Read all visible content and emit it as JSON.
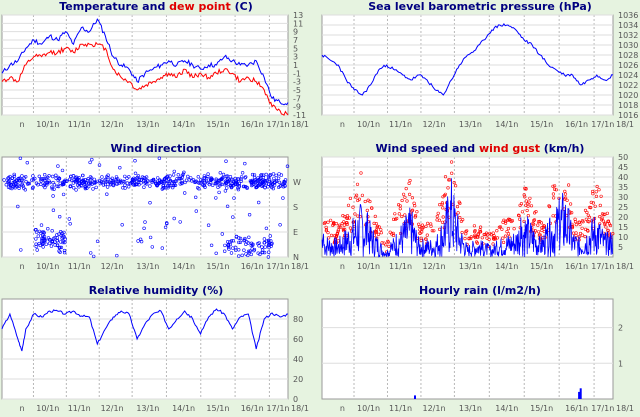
{
  "x_ticks": [
    "n",
    "10/1n",
    "11/1n",
    "12/1n",
    "13/1n",
    "14/1n",
    "15/1n",
    "16/1n",
    "17/1n",
    "18/1"
  ],
  "colors": {
    "blue": "#0000ff",
    "red": "#ff0000",
    "title": "#000080",
    "background": "#e6f3e0"
  },
  "chart_data": [
    {
      "type": "line",
      "title_part1": "Temperature and ",
      "title_part2": "dew point",
      "title_part3": " (C)",
      "ylim": [
        -11,
        13
      ],
      "yticks": [
        13,
        11,
        9,
        7,
        5,
        3,
        1,
        -1,
        -3,
        -5,
        -7,
        -9,
        -11
      ],
      "x_range": [
        0,
        36
      ],
      "series": [
        {
          "color": "#0000ff",
          "values": [
            [
              0,
              -1
            ],
            [
              1,
              1
            ],
            [
              2,
              2
            ],
            [
              3,
              5
            ],
            [
              4,
              7
            ],
            [
              5,
              6
            ],
            [
              6,
              8
            ],
            [
              7,
              7
            ],
            [
              8,
              9
            ],
            [
              9,
              6
            ],
            [
              10,
              10
            ],
            [
              11,
              9
            ],
            [
              12,
              12
            ],
            [
              13,
              8
            ],
            [
              14,
              3
            ],
            [
              15,
              1
            ],
            [
              16,
              0
            ],
            [
              17,
              -3
            ],
            [
              18,
              -1
            ],
            [
              19,
              0
            ],
            [
              20,
              1
            ],
            [
              21,
              2
            ],
            [
              22,
              1
            ],
            [
              23,
              2
            ],
            [
              24,
              1
            ],
            [
              25,
              0
            ],
            [
              26,
              1
            ],
            [
              27,
              1
            ],
            [
              28,
              3
            ],
            [
              29,
              2
            ],
            [
              30,
              1
            ],
            [
              31,
              1
            ],
            [
              32,
              2
            ],
            [
              33,
              -2
            ],
            [
              34,
              -7
            ],
            [
              35,
              -8
            ],
            [
              36,
              -8
            ]
          ]
        },
        {
          "color": "#ff0000",
          "values": [
            [
              0,
              -3
            ],
            [
              1,
              -2
            ],
            [
              2,
              -3
            ],
            [
              3,
              1
            ],
            [
              4,
              3
            ],
            [
              5,
              3
            ],
            [
              6,
              4
            ],
            [
              7,
              4
            ],
            [
              8,
              5
            ],
            [
              9,
              4
            ],
            [
              10,
              6
            ],
            [
              11,
              6
            ],
            [
              12,
              6
            ],
            [
              13,
              5
            ],
            [
              14,
              0
            ],
            [
              15,
              -2
            ],
            [
              16,
              -3
            ],
            [
              17,
              -5
            ],
            [
              18,
              -4
            ],
            [
              19,
              -3
            ],
            [
              20,
              -2
            ],
            [
              21,
              -1
            ],
            [
              22,
              -2
            ],
            [
              23,
              0
            ],
            [
              24,
              -2
            ],
            [
              25,
              -1
            ],
            [
              26,
              -2
            ],
            [
              27,
              -1
            ],
            [
              28,
              0
            ],
            [
              29,
              -1
            ],
            [
              30,
              -3
            ],
            [
              31,
              -2
            ],
            [
              32,
              -3
            ],
            [
              33,
              -5
            ],
            [
              34,
              -9
            ],
            [
              35,
              -10
            ],
            [
              36,
              -11
            ]
          ]
        }
      ]
    },
    {
      "type": "line",
      "title": "Sea level barometric pressure (hPa)",
      "ylim": [
        1016,
        1036
      ],
      "yticks": [
        1036,
        1034,
        1032,
        1030,
        1028,
        1026,
        1024,
        1022,
        1020,
        1018,
        1016
      ],
      "x_range": [
        0,
        36
      ],
      "series": [
        {
          "color": "#0000ff",
          "values": [
            [
              0,
              1028
            ],
            [
              1,
              1027
            ],
            [
              2,
              1026
            ],
            [
              3,
              1023
            ],
            [
              4,
              1021
            ],
            [
              5,
              1020
            ],
            [
              6,
              1022
            ],
            [
              7,
              1025
            ],
            [
              8,
              1026
            ],
            [
              9,
              1025
            ],
            [
              10,
              1024
            ],
            [
              11,
              1023
            ],
            [
              12,
              1024
            ],
            [
              13,
              1023
            ],
            [
              14,
              1021
            ],
            [
              15,
              1020
            ],
            [
              16,
              1023
            ],
            [
              17,
              1026
            ],
            [
              18,
              1028
            ],
            [
              19,
              1029
            ],
            [
              20,
              1031
            ],
            [
              21,
              1033
            ],
            [
              22,
              1034
            ],
            [
              23,
              1034
            ],
            [
              24,
              1033
            ],
            [
              25,
              1031
            ],
            [
              26,
              1030
            ],
            [
              27,
              1028
            ],
            [
              28,
              1026
            ],
            [
              29,
              1025
            ],
            [
              30,
              1024
            ],
            [
              31,
              1024
            ],
            [
              32,
              1022
            ],
            [
              33,
              1023
            ],
            [
              34,
              1024
            ],
            [
              35,
              1023
            ],
            [
              36,
              1024
            ]
          ]
        }
      ]
    },
    {
      "type": "scatter",
      "title": "Wind direction",
      "yticks": [
        "W",
        "S",
        "E",
        "N"
      ],
      "y_tick_values": [
        270,
        180,
        90,
        0
      ],
      "ylim": [
        0,
        360
      ],
      "x_range": [
        0,
        36
      ],
      "bands": [
        [
          0,
          36,
          270,
          30
        ],
        [
          4,
          8,
          60,
          50
        ],
        [
          28,
          34,
          40,
          40
        ]
      ]
    },
    {
      "type": "scatter",
      "title_part1": "Wind speed and ",
      "title_part2": "wind gust",
      "title_part3": " (km/h)",
      "ylim": [
        0,
        50
      ],
      "yticks": [
        50,
        45,
        40,
        35,
        30,
        25,
        20,
        15,
        10,
        5
      ],
      "x_range": [
        0,
        36
      ],
      "series": [
        {
          "color": "#ff0000",
          "kind": "gust",
          "values": [
            [
              0,
              18
            ],
            [
              2,
              15
            ],
            [
              4,
              30
            ],
            [
              5,
              40
            ],
            [
              6,
              25
            ],
            [
              8,
              5
            ],
            [
              9,
              20
            ],
            [
              11,
              35
            ],
            [
              12,
              15
            ],
            [
              14,
              15
            ],
            [
              15,
              30
            ],
            [
              16,
              48
            ],
            [
              17,
              25
            ],
            [
              18,
              10
            ],
            [
              19,
              15
            ],
            [
              21,
              10
            ],
            [
              22,
              15
            ],
            [
              24,
              20
            ],
            [
              25,
              32
            ],
            [
              26,
              25
            ],
            [
              27,
              15
            ],
            [
              28,
              25
            ],
            [
              29,
              35
            ],
            [
              30,
              45
            ],
            [
              31,
              20
            ],
            [
              32,
              15
            ],
            [
              33,
              25
            ],
            [
              34,
              35
            ],
            [
              35,
              20
            ],
            [
              36,
              20
            ]
          ]
        },
        {
          "color": "#0000ff",
          "kind": "speed",
          "values": [
            [
              0,
              10
            ],
            [
              2,
              8
            ],
            [
              4,
              18
            ],
            [
              5,
              25
            ],
            [
              6,
              15
            ],
            [
              8,
              2
            ],
            [
              9,
              10
            ],
            [
              11,
              22
            ],
            [
              12,
              8
            ],
            [
              14,
              8
            ],
            [
              15,
              18
            ],
            [
              16,
              35
            ],
            [
              17,
              15
            ],
            [
              18,
              5
            ],
            [
              19,
              8
            ],
            [
              21,
              5
            ],
            [
              22,
              8
            ],
            [
              24,
              12
            ],
            [
              25,
              20
            ],
            [
              26,
              15
            ],
            [
              27,
              8
            ],
            [
              28,
              15
            ],
            [
              29,
              22
            ],
            [
              30,
              30
            ],
            [
              31,
              12
            ],
            [
              32,
              8
            ],
            [
              33,
              15
            ],
            [
              34,
              20
            ],
            [
              35,
              10
            ],
            [
              36,
              12
            ]
          ]
        }
      ]
    },
    {
      "type": "line",
      "title": "Relative humidity (%)",
      "ylim": [
        0,
        100
      ],
      "yticks": [
        80,
        60,
        40,
        20,
        0
      ],
      "x_range": [
        0,
        36
      ],
      "series": [
        {
          "color": "#0000ff",
          "values": [
            [
              0,
              70
            ],
            [
              1,
              85
            ],
            [
              2,
              60
            ],
            [
              2.5,
              48
            ],
            [
              3,
              70
            ],
            [
              4,
              85
            ],
            [
              5,
              82
            ],
            [
              6,
              88
            ],
            [
              7,
              88
            ],
            [
              8,
              85
            ],
            [
              9,
              88
            ],
            [
              10,
              83
            ],
            [
              11,
              82
            ],
            [
              12,
              55
            ],
            [
              13,
              70
            ],
            [
              14,
              82
            ],
            [
              15,
              88
            ],
            [
              16,
              85
            ],
            [
              17,
              60
            ],
            [
              18,
              75
            ],
            [
              19,
              85
            ],
            [
              20,
              88
            ],
            [
              21,
              70
            ],
            [
              22,
              80
            ],
            [
              23,
              88
            ],
            [
              24,
              80
            ],
            [
              25,
              65
            ],
            [
              26,
              82
            ],
            [
              27,
              90
            ],
            [
              28,
              85
            ],
            [
              29,
              70
            ],
            [
              30,
              82
            ],
            [
              31,
              85
            ],
            [
              32,
              50
            ],
            [
              33,
              80
            ],
            [
              34,
              86
            ],
            [
              35,
              82
            ],
            [
              36,
              85
            ]
          ]
        }
      ]
    },
    {
      "type": "bar",
      "title": "Hourly rain (l/m2/h)",
      "ylim": [
        0,
        2.8
      ],
      "yticks": [
        2,
        1
      ],
      "x_range": [
        0,
        36
      ],
      "series": [
        {
          "color": "#0000ff",
          "values": [
            [
              11.5,
              0.1
            ],
            [
              31.8,
              0.2
            ],
            [
              32.0,
              0.3
            ]
          ]
        }
      ]
    }
  ]
}
